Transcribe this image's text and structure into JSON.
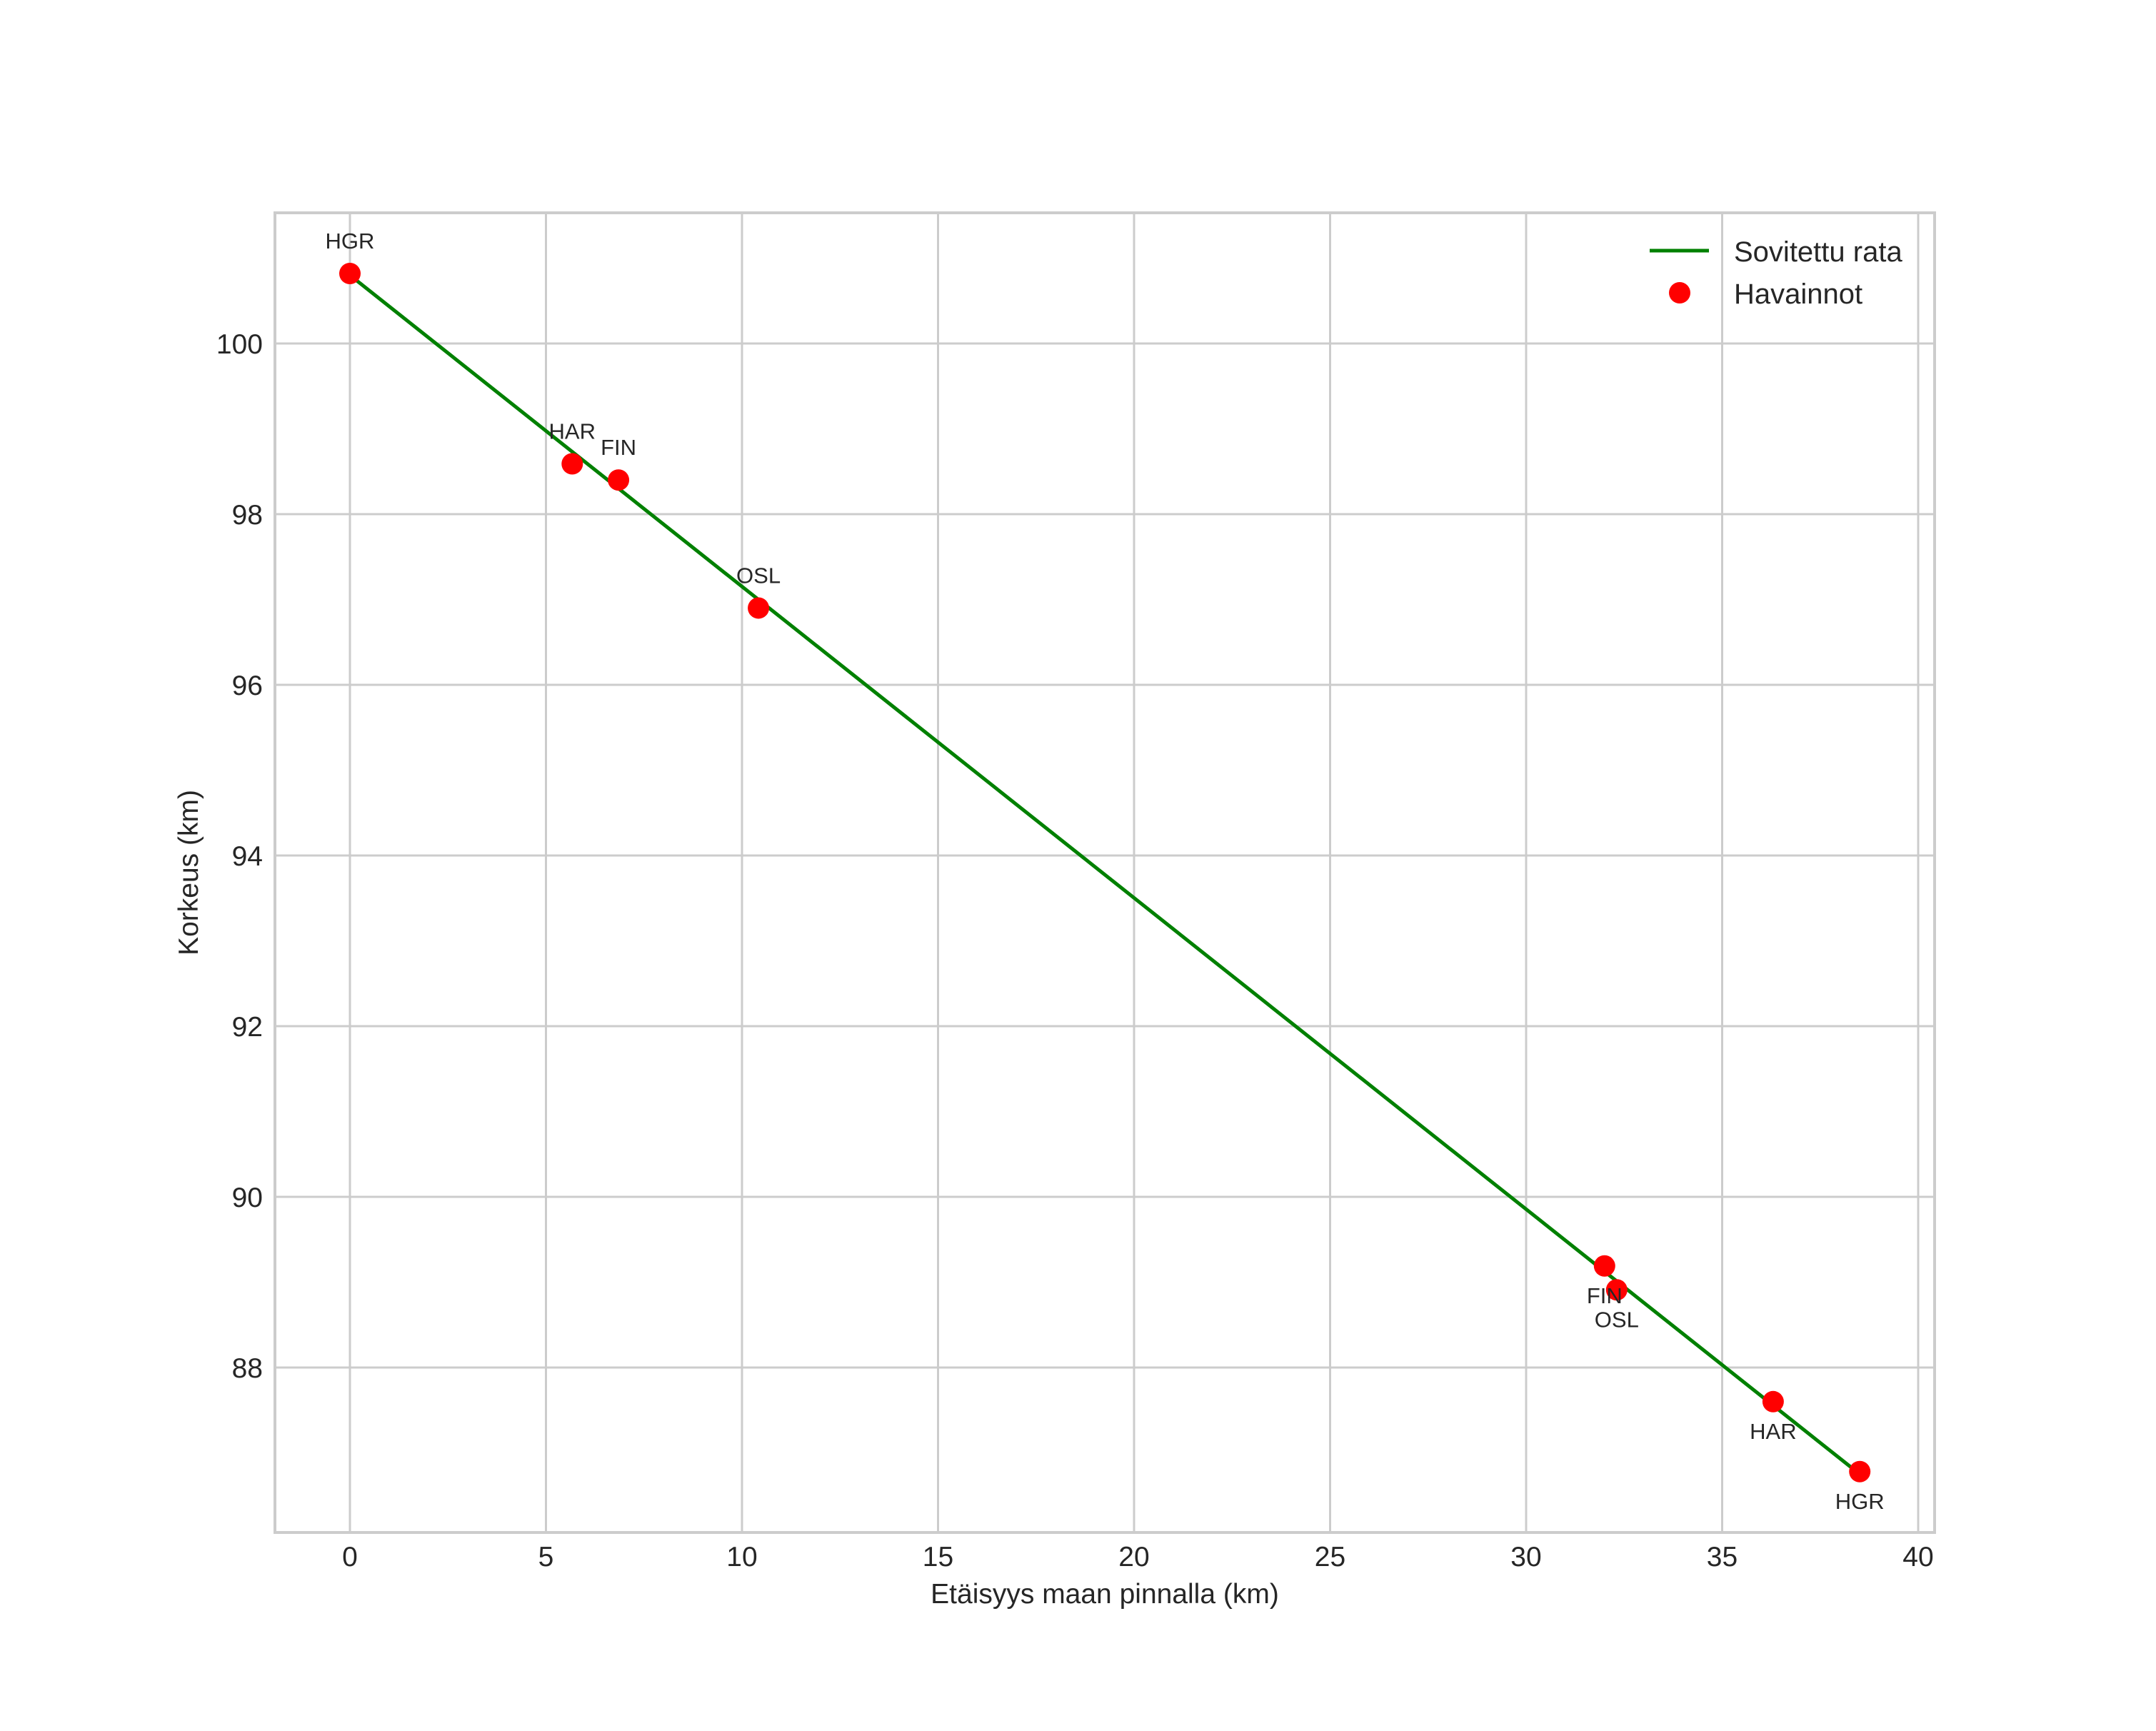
{
  "chart_data": {
    "type": "scatter",
    "title": "",
    "xlabel": "Etäisyys maan pinnalla (km)",
    "ylabel": "Korkeus (km)",
    "xlim": [
      -1.9,
      40.4
    ],
    "ylim": [
      86.07,
      101.53
    ],
    "xticks": [
      0,
      5,
      10,
      15,
      20,
      25,
      30,
      35,
      40
    ],
    "yticks": [
      88,
      90,
      92,
      94,
      96,
      98,
      100
    ],
    "grid": true,
    "legend": {
      "position": "upper right",
      "entries": [
        {
          "label": "Sovitettu rata",
          "type": "line",
          "color": "#008000"
        },
        {
          "label": "Havainnot",
          "type": "marker",
          "color": "#ff0000"
        }
      ]
    },
    "series": [
      {
        "name": "Sovitettu rata",
        "type": "line",
        "color": "#008000",
        "x": [
          0.0,
          38.51
        ],
        "y": [
          100.8,
          86.75
        ]
      },
      {
        "name": "Havainnot",
        "type": "scatter",
        "color": "#ff0000",
        "points": [
          {
            "label": "HGR",
            "x": 0.0,
            "y": 100.82,
            "label_pos": "above"
          },
          {
            "label": "HAR",
            "x": 5.67,
            "y": 98.59,
            "label_pos": "above"
          },
          {
            "label": "FIN",
            "x": 6.85,
            "y": 98.4,
            "label_pos": "above"
          },
          {
            "label": "OSL",
            "x": 10.42,
            "y": 96.9,
            "label_pos": "above"
          },
          {
            "label": "FIN",
            "x": 32.0,
            "y": 89.19,
            "label_pos": "below"
          },
          {
            "label": "OSL",
            "x": 32.31,
            "y": 88.91,
            "label_pos": "below"
          },
          {
            "label": "HAR",
            "x": 36.3,
            "y": 87.6,
            "label_pos": "below"
          },
          {
            "label": "HGR",
            "x": 38.51,
            "y": 86.78,
            "label_pos": "below"
          }
        ]
      }
    ]
  },
  "labels": {
    "xlabel": "Etäisyys maan pinnalla (km)",
    "ylabel": "Korkeus (km)",
    "legend_line": "Sovitettu rata",
    "legend_marker": "Havainnot"
  },
  "colors": {
    "fit_line": "#008000",
    "observations": "#ff0000",
    "grid": "#cccccc",
    "spine": "#cccccc",
    "text": "#262626"
  }
}
